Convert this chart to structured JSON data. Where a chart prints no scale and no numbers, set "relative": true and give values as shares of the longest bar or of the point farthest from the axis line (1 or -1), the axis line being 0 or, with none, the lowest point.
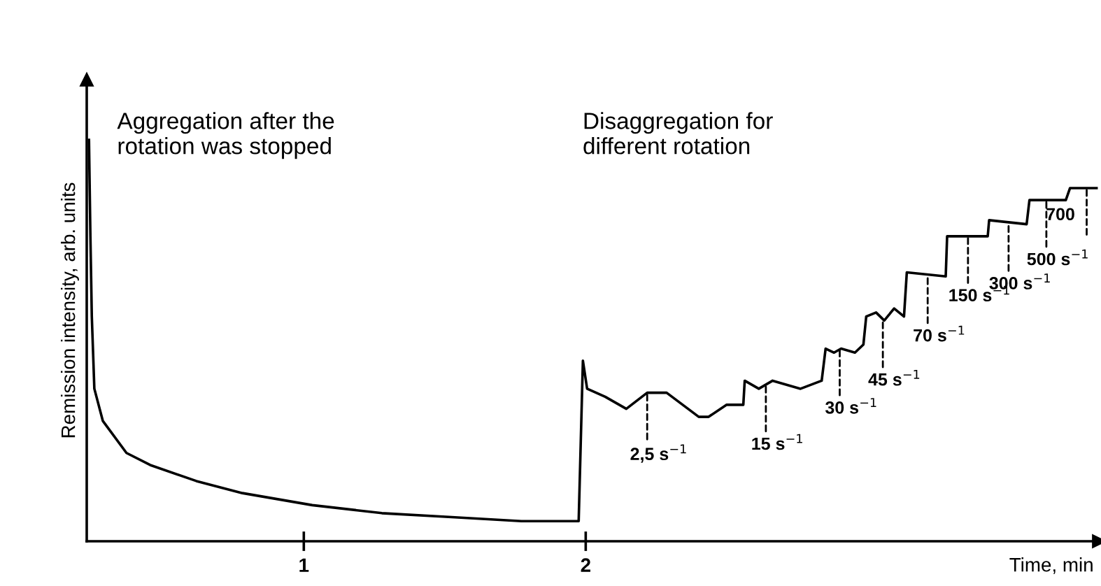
{
  "chart_data": {
    "type": "line",
    "relative": true,
    "ylabel": "Remission intensity, arb. units",
    "xlabel": "Time, min",
    "xlim": [
      0.23,
      3.82
    ],
    "xticks": [
      1,
      2
    ],
    "marker": "none",
    "line_style": "solid",
    "series": [
      {
        "color": "#000000",
        "x": [
          0.238,
          0.243,
          0.248,
          0.257,
          0.287,
          0.371,
          0.455,
          0.619,
          0.782,
          1.03,
          1.277,
          1.525,
          1.772,
          1.975,
          1.99,
          2.005,
          2.069,
          2.144,
          2.218,
          2.287,
          2.401,
          2.436,
          2.5,
          2.559,
          2.564,
          2.614,
          2.663,
          2.762,
          2.837,
          2.851,
          2.881,
          2.906,
          2.955,
          2.985,
          2.995,
          3.03,
          3.059,
          3.094,
          3.129,
          3.139,
          3.277,
          3.282,
          3.426,
          3.431,
          3.564,
          3.574,
          3.703,
          3.718,
          3.812
        ],
        "values": [
          1.0,
          0.76,
          0.56,
          0.38,
          0.3,
          0.22,
          0.19,
          0.15,
          0.12,
          0.09,
          0.07,
          0.06,
          0.05,
          0.05,
          0.45,
          0.38,
          0.36,
          0.33,
          0.37,
          0.37,
          0.31,
          0.31,
          0.34,
          0.34,
          0.4,
          0.38,
          0.4,
          0.38,
          0.4,
          0.48,
          0.47,
          0.48,
          0.47,
          0.49,
          0.56,
          0.57,
          0.55,
          0.58,
          0.56,
          0.67,
          0.66,
          0.76,
          0.76,
          0.8,
          0.79,
          0.85,
          0.85,
          0.88,
          0.88
        ]
      }
    ],
    "annotations": [
      "Aggregation after the\nrotation was stopped",
      "Disaggregation for\ndifferent rotation",
      {
        "text": "2,5 s$^{−1}$",
        "x": 2.218,
        "y": 0.37
      },
      {
        "text": "15 s$^{−1}$",
        "x": 2.639,
        "y": 0.39
      },
      {
        "text": "30 s$^{−1}$",
        "x": 2.901,
        "y": 0.48
      },
      {
        "text": "45 s$^{−1}$",
        "x": 3.054,
        "y": 0.55
      },
      {
        "text": "70 s$^{−1}$",
        "x": 3.213,
        "y": 0.66
      },
      {
        "text": "150 s$^{−1}$",
        "x": 3.356,
        "y": 0.76
      },
      {
        "text": "300 s$^{−1}$",
        "x": 3.5,
        "y": 0.79
      },
      {
        "text": "500 s$^{−1}$",
        "x": 3.634,
        "y": 0.85
      },
      {
        "text": "700",
        "x": 3.777,
        "y": 0.88
      }
    ]
  }
}
